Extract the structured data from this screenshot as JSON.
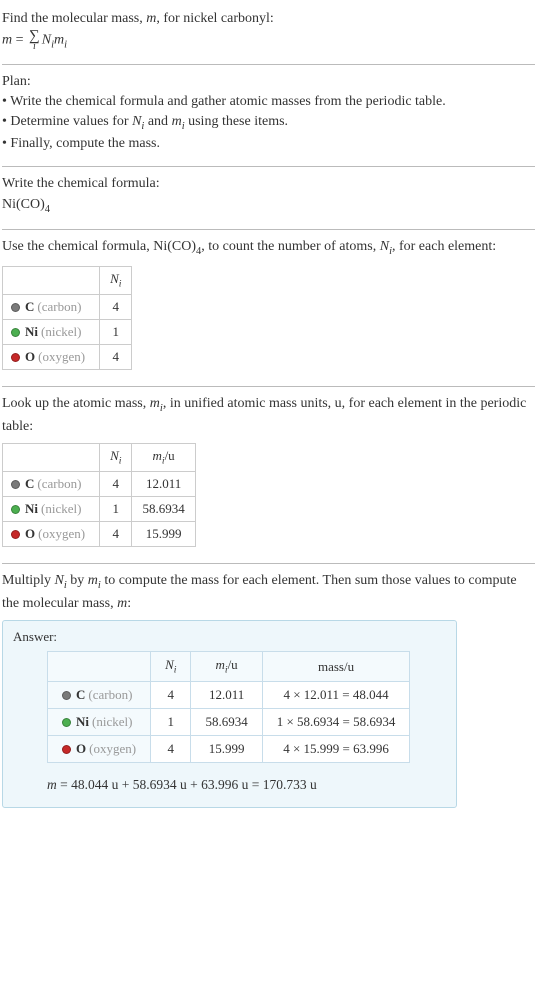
{
  "intro": {
    "line1_pre": "Find the molecular mass, ",
    "line1_var": "m",
    "line1_post": ", for nickel carbonyl:",
    "formula_lhs": "m",
    "formula_eq": " = ",
    "sigma_sub": "i",
    "formula_rhs1": "N",
    "formula_rhs1_sub": "i",
    "formula_rhs2": "m",
    "formula_rhs2_sub": "i"
  },
  "plan": {
    "heading": "Plan:",
    "b1": "• Write the chemical formula and gather atomic masses from the periodic table.",
    "b2_pre": "• Determine values for ",
    "b2_v1": "N",
    "b2_v1s": "i",
    "b2_mid": " and ",
    "b2_v2": "m",
    "b2_v2s": "i",
    "b2_post": " using these items.",
    "b3": "• Finally, compute the mass."
  },
  "writeFormula": {
    "heading": "Write the chemical formula:",
    "f_pre": "Ni(CO)",
    "f_sub": "4"
  },
  "countAtoms": {
    "text_pre": "Use the chemical formula, Ni(CO)",
    "text_sub1": "4",
    "text_mid": ", to count the number of atoms, ",
    "text_var": "N",
    "text_varsub": "i",
    "text_post": ", for each element:",
    "header_N": "N",
    "header_Nsub": "i"
  },
  "elements": [
    {
      "sym": "C",
      "name": "(carbon)",
      "color": "#7a7a7a",
      "N": "4",
      "m": "12.011",
      "mass": "4 × 12.011 = 48.044"
    },
    {
      "sym": "Ni",
      "name": "(nickel)",
      "color": "#4caf50",
      "N": "1",
      "m": "58.6934",
      "mass": "1 × 58.6934 = 58.6934"
    },
    {
      "sym": "O",
      "name": "(oxygen)",
      "color": "#c62828",
      "N": "4",
      "m": "15.999",
      "mass": "4 × 15.999 = 63.996"
    }
  ],
  "lookupMass": {
    "text_pre": "Look up the atomic mass, ",
    "text_var": "m",
    "text_varsub": "i",
    "text_post": ", in unified atomic mass units, u, for each element in the periodic table:",
    "header_m": "m",
    "header_msub": "i",
    "header_unit": "/u"
  },
  "multiply": {
    "text_pre": "Multiply ",
    "v1": "N",
    "v1s": "i",
    "text_mid1": " by ",
    "v2": "m",
    "v2s": "i",
    "text_mid2": " to compute the mass for each element. Then sum those values to compute the molecular mass, ",
    "v3": "m",
    "text_post": ":"
  },
  "answer": {
    "label": "Answer:",
    "header_mass": "mass/u",
    "final_lhs": "m",
    "final_rhs": " = 48.044 u + 58.6934 u + 63.996 u = 170.733 u"
  }
}
